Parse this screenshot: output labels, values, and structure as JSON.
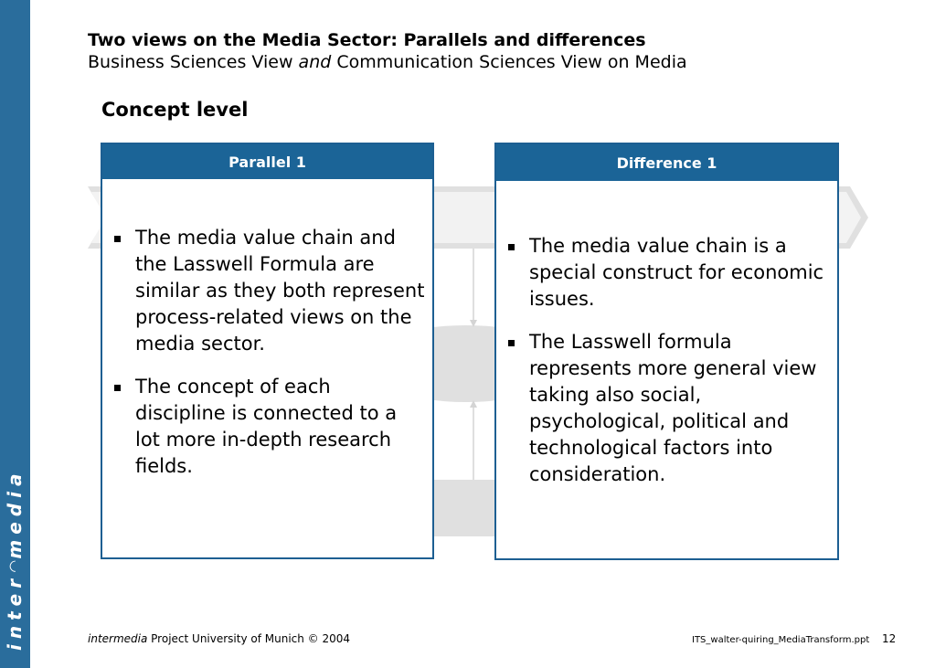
{
  "slide": {
    "title_bold": "Two views on the Media Sector: Parallels and differences",
    "subtitle_part1": "Business Sciences View ",
    "subtitle_italic": "and",
    "subtitle_part2": " Communication Sciences View on Media",
    "section_heading": "Concept level"
  },
  "panels": {
    "left": {
      "header": "Parallel 1",
      "bullets": [
        "The media value chain and the Lasswell Formula are similar as they both represent process-related views on the media sector.",
        "The concept of each discipline is connected to a lot more in-depth research fields."
      ]
    },
    "right": {
      "header": "Difference 1",
      "bullets": [
        "The media value chain is a special construct for economic issues.",
        "The Lasswell formula represents more general view taking also social, psychological, political and technological factors into consideration."
      ]
    }
  },
  "brand": {
    "logo_left": "inter",
    "logo_right": "media"
  },
  "footer": {
    "italic_name": "intermedia",
    "text": " Project University of Munich © 2004",
    "filename": "ITS_walter-quiring_MediaTransform.ppt",
    "page_number": "12"
  },
  "colors": {
    "brand_blue": "#2a6d9c",
    "header_blue": "#1b6497",
    "diagram_gray": "#e0e0e0"
  }
}
